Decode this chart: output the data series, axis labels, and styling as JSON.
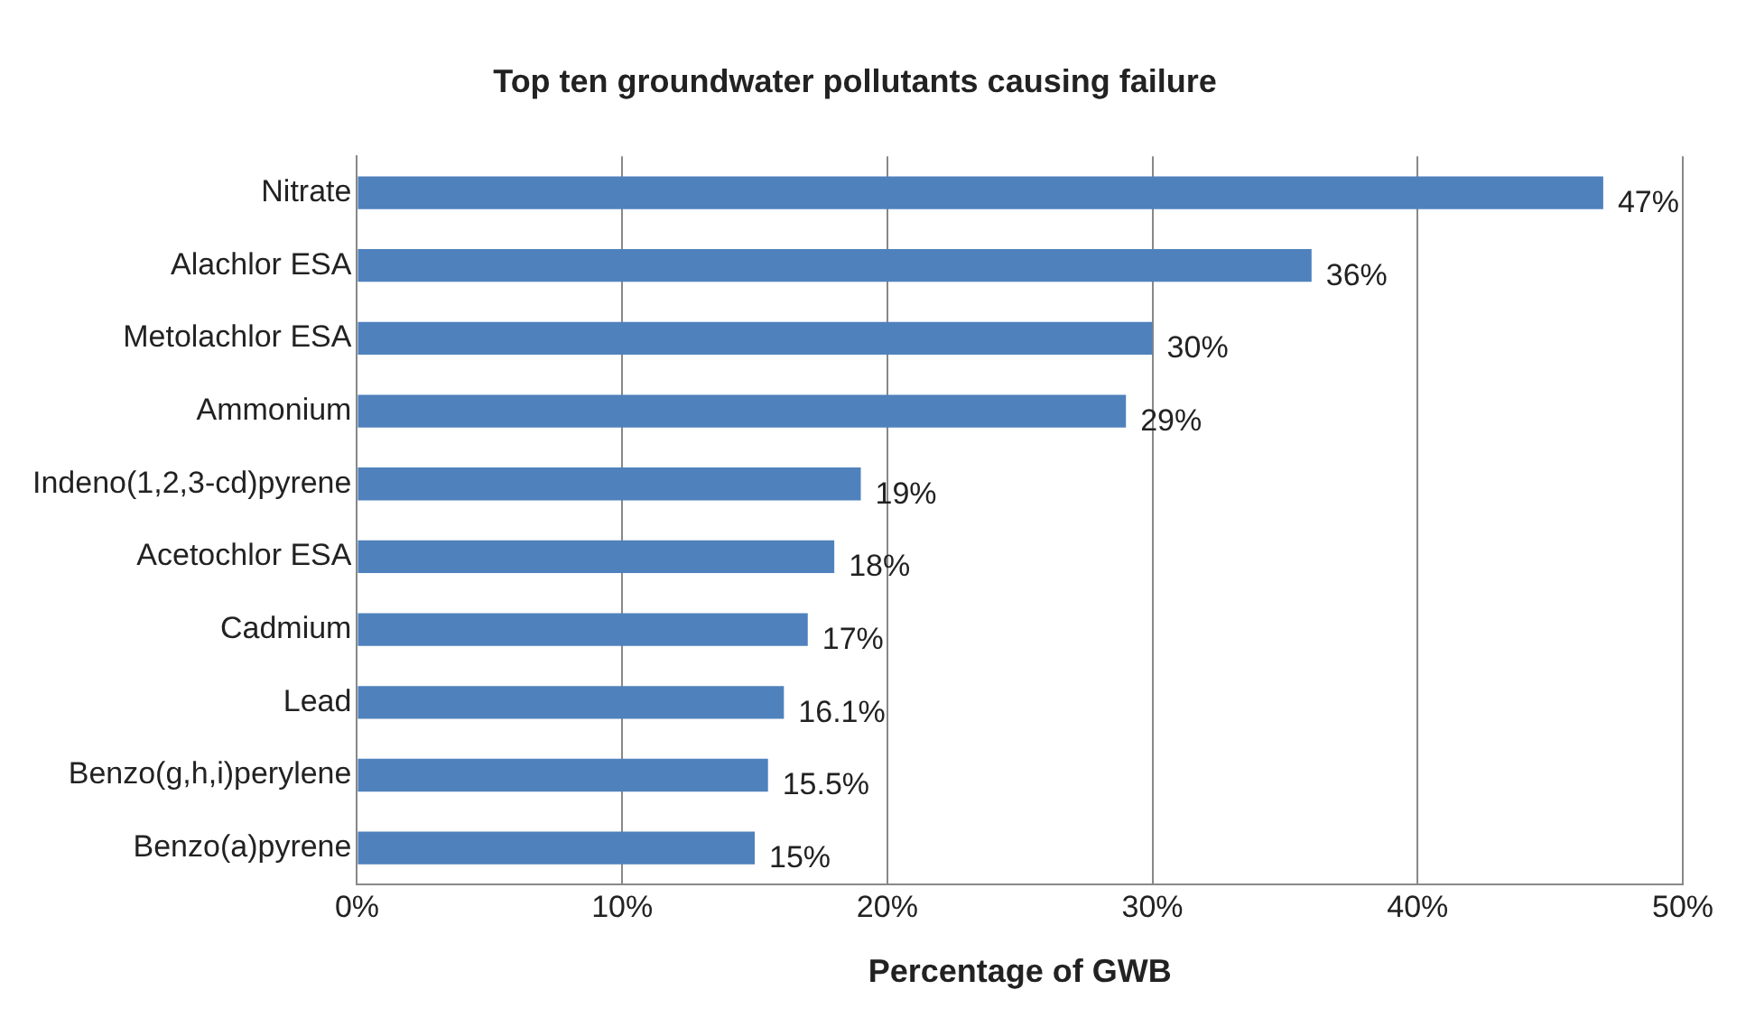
{
  "chart_data": {
    "type": "bar",
    "orientation": "horizontal",
    "title": "Top ten groundwater pollutants causing failure",
    "xlabel": "Percentage of GWB",
    "categories": [
      "Nitrate",
      "Alachlor ESA",
      "Metolachlor ESA",
      "Ammonium",
      "Indeno(1,2,3-cd)pyrene",
      "Acetochlor ESA",
      "Cadmium",
      "Lead",
      "Benzo(g,h,i)perylene",
      "Benzo(a)pyrene"
    ],
    "values": [
      47,
      36,
      30,
      29,
      19,
      18,
      17,
      16.1,
      15.5,
      15
    ],
    "value_labels": [
      "47%",
      "36%",
      "30%",
      "29%",
      "19%",
      "18%",
      "17%",
      "16.1%",
      "15.5%",
      "15%"
    ],
    "color": "#4f81bd",
    "xlim": [
      0,
      50
    ],
    "xticks": [
      {
        "value": 0,
        "label": "0%"
      },
      {
        "value": 10,
        "label": "10%"
      },
      {
        "value": 20,
        "label": "20%"
      },
      {
        "value": 30,
        "label": "30%"
      },
      {
        "value": 40,
        "label": "40%"
      },
      {
        "value": 50,
        "label": "50%"
      }
    ],
    "grid": "x"
  }
}
